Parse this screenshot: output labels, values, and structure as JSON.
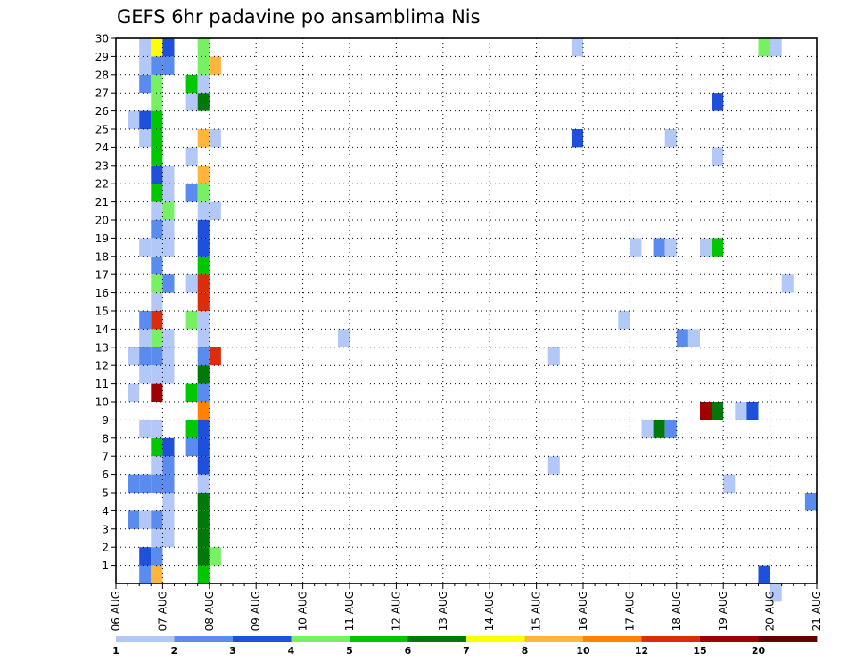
{
  "chart_data": {
    "type": "heatmap",
    "title": "GEFS 6hr padavine po ansamblima Nis",
    "x_range_days": [
      0,
      15
    ],
    "x_tick_labels": [
      "06 AUG",
      "07 AUG",
      "08 AUG",
      "09 AUG",
      "10 AUG",
      "11 AUG",
      "12 AUG",
      "13 AUG",
      "14 AUG",
      "15 AUG",
      "16 AUG",
      "17 AUG",
      "18 AUG",
      "19 AUG",
      "20 AUG",
      "21 AUG"
    ],
    "y_range": [
      0,
      30
    ],
    "y_tick_labels": [
      "1",
      "2",
      "3",
      "4",
      "5",
      "6",
      "7",
      "8",
      "9",
      "10",
      "11",
      "12",
      "13",
      "14",
      "15",
      "16",
      "17",
      "18",
      "19",
      "20",
      "21",
      "22",
      "23",
      "24",
      "25",
      "26",
      "27",
      "28",
      "29",
      "30"
    ],
    "grid": true,
    "step_hours": 6,
    "colorbar": {
      "levels": [
        "1",
        "2",
        "3",
        "4",
        "5",
        "6",
        "7",
        "8",
        "10",
        "12",
        "15",
        "20"
      ],
      "colors": [
        "#b4c8f8",
        "#5a8cf0",
        "#1e50dc",
        "#78f064",
        "#00c800",
        "#00780a",
        "#ffff00",
        "#ffb43c",
        "#ff8200",
        "#dc2d0a",
        "#a00000",
        "#640000"
      ]
    },
    "cells": [
      {
        "day": 0.25,
        "member": 5,
        "class": 2
      },
      {
        "day": 0.25,
        "member": 3,
        "class": 2
      },
      {
        "day": 0.25,
        "member": 10,
        "class": 1
      },
      {
        "day": 0.25,
        "member": 12,
        "class": 1
      },
      {
        "day": 0.25,
        "member": 25,
        "class": 1
      },
      {
        "day": 0.5,
        "member": 0,
        "class": 2
      },
      {
        "day": 0.5,
        "member": 1,
        "class": 3
      },
      {
        "day": 0.5,
        "member": 3,
        "class": 1
      },
      {
        "day": 0.5,
        "member": 5,
        "class": 2
      },
      {
        "day": 0.5,
        "member": 8,
        "class": 1
      },
      {
        "day": 0.5,
        "member": 11,
        "class": 1
      },
      {
        "day": 0.5,
        "member": 12,
        "class": 2
      },
      {
        "day": 0.5,
        "member": 13,
        "class": 1
      },
      {
        "day": 0.5,
        "member": 14,
        "class": 2
      },
      {
        "day": 0.5,
        "member": 18,
        "class": 1
      },
      {
        "day": 0.5,
        "member": 24,
        "class": 1
      },
      {
        "day": 0.5,
        "member": 25,
        "class": 3
      },
      {
        "day": 0.5,
        "member": 27,
        "class": 2
      },
      {
        "day": 0.5,
        "member": 28,
        "class": 1
      },
      {
        "day": 0.5,
        "member": 29,
        "class": 1
      },
      {
        "day": 0.75,
        "member": 0,
        "class": 8
      },
      {
        "day": 0.75,
        "member": 1,
        "class": 2
      },
      {
        "day": 0.75,
        "member": 2,
        "class": 1
      },
      {
        "day": 0.75,
        "member": 3,
        "class": 2
      },
      {
        "day": 0.75,
        "member": 5,
        "class": 2
      },
      {
        "day": 0.75,
        "member": 6,
        "class": 1
      },
      {
        "day": 0.75,
        "member": 7,
        "class": 5
      },
      {
        "day": 0.75,
        "member": 8,
        "class": 1
      },
      {
        "day": 0.75,
        "member": 10,
        "class": 11
      },
      {
        "day": 0.75,
        "member": 11,
        "class": 1
      },
      {
        "day": 0.75,
        "member": 12,
        "class": 2
      },
      {
        "day": 0.75,
        "member": 13,
        "class": 4
      },
      {
        "day": 0.75,
        "member": 14,
        "class": 10
      },
      {
        "day": 0.75,
        "member": 15,
        "class": 1
      },
      {
        "day": 0.75,
        "member": 16,
        "class": 4
      },
      {
        "day": 0.75,
        "member": 17,
        "class": 2
      },
      {
        "day": 0.75,
        "member": 18,
        "class": 1
      },
      {
        "day": 0.75,
        "member": 19,
        "class": 2
      },
      {
        "day": 0.75,
        "member": 20,
        "class": 1
      },
      {
        "day": 0.75,
        "member": 21,
        "class": 5
      },
      {
        "day": 0.75,
        "member": 22,
        "class": 3
      },
      {
        "day": 0.75,
        "member": 23,
        "class": 5
      },
      {
        "day": 0.75,
        "member": 24,
        "class": 5
      },
      {
        "day": 0.75,
        "member": 25,
        "class": 5
      },
      {
        "day": 0.75,
        "member": 26,
        "class": 4
      },
      {
        "day": 0.75,
        "member": 27,
        "class": 4
      },
      {
        "day": 0.75,
        "member": 28,
        "class": 2
      },
      {
        "day": 0.75,
        "member": 29,
        "class": 7
      },
      {
        "day": 1.0,
        "member": 2,
        "class": 1
      },
      {
        "day": 1.0,
        "member": 3,
        "class": 1
      },
      {
        "day": 1.0,
        "member": 4,
        "class": 1
      },
      {
        "day": 1.0,
        "member": 5,
        "class": 2
      },
      {
        "day": 1.0,
        "member": 6,
        "class": 2
      },
      {
        "day": 1.0,
        "member": 7,
        "class": 3
      },
      {
        "day": 1.0,
        "member": 11,
        "class": 1
      },
      {
        "day": 1.0,
        "member": 12,
        "class": 1
      },
      {
        "day": 1.0,
        "member": 13,
        "class": 1
      },
      {
        "day": 1.0,
        "member": 16,
        "class": 2
      },
      {
        "day": 1.0,
        "member": 18,
        "class": 1
      },
      {
        "day": 1.0,
        "member": 19,
        "class": 1
      },
      {
        "day": 1.0,
        "member": 20,
        "class": 4
      },
      {
        "day": 1.0,
        "member": 21,
        "class": 1
      },
      {
        "day": 1.0,
        "member": 22,
        "class": 1
      },
      {
        "day": 1.0,
        "member": 28,
        "class": 2
      },
      {
        "day": 1.0,
        "member": 29,
        "class": 3
      },
      {
        "day": 1.5,
        "member": 7,
        "class": 2
      },
      {
        "day": 1.5,
        "member": 8,
        "class": 5
      },
      {
        "day": 1.5,
        "member": 10,
        "class": 5
      },
      {
        "day": 1.5,
        "member": 14,
        "class": 4
      },
      {
        "day": 1.5,
        "member": 16,
        "class": 1
      },
      {
        "day": 1.5,
        "member": 21,
        "class": 2
      },
      {
        "day": 1.5,
        "member": 23,
        "class": 1
      },
      {
        "day": 1.5,
        "member": 26,
        "class": 1
      },
      {
        "day": 1.5,
        "member": 27,
        "class": 5
      },
      {
        "day": 1.75,
        "member": 0,
        "class": 5
      },
      {
        "day": 1.75,
        "member": 1,
        "class": 6
      },
      {
        "day": 1.75,
        "member": 2,
        "class": 6
      },
      {
        "day": 1.75,
        "member": 3,
        "class": 6
      },
      {
        "day": 1.75,
        "member": 4,
        "class": 6
      },
      {
        "day": 1.75,
        "member": 5,
        "class": 1
      },
      {
        "day": 1.75,
        "member": 6,
        "class": 3
      },
      {
        "day": 1.75,
        "member": 7,
        "class": 3
      },
      {
        "day": 1.75,
        "member": 8,
        "class": 3
      },
      {
        "day": 1.75,
        "member": 9,
        "class": 9
      },
      {
        "day": 1.75,
        "member": 10,
        "class": 2
      },
      {
        "day": 1.75,
        "member": 11,
        "class": 6
      },
      {
        "day": 1.75,
        "member": 12,
        "class": 2
      },
      {
        "day": 1.75,
        "member": 13,
        "class": 1
      },
      {
        "day": 1.75,
        "member": 14,
        "class": 1
      },
      {
        "day": 1.75,
        "member": 15,
        "class": 10
      },
      {
        "day": 1.75,
        "member": 16,
        "class": 10
      },
      {
        "day": 1.75,
        "member": 17,
        "class": 5
      },
      {
        "day": 1.75,
        "member": 18,
        "class": 3
      },
      {
        "day": 1.75,
        "member": 19,
        "class": 3
      },
      {
        "day": 1.75,
        "member": 20,
        "class": 1
      },
      {
        "day": 1.75,
        "member": 21,
        "class": 4
      },
      {
        "day": 1.75,
        "member": 22,
        "class": 8
      },
      {
        "day": 1.75,
        "member": 24,
        "class": 8
      },
      {
        "day": 1.75,
        "member": 26,
        "class": 6
      },
      {
        "day": 1.75,
        "member": 27,
        "class": 1
      },
      {
        "day": 1.75,
        "member": 28,
        "class": 4
      },
      {
        "day": 1.75,
        "member": 29,
        "class": 4
      },
      {
        "day": 2.0,
        "member": 1,
        "class": 4
      },
      {
        "day": 2.0,
        "member": 12,
        "class": 10
      },
      {
        "day": 2.0,
        "member": 20,
        "class": 1
      },
      {
        "day": 2.0,
        "member": 24,
        "class": 1
      },
      {
        "day": 2.0,
        "member": 28,
        "class": 8
      },
      {
        "day": 4.75,
        "member": 13,
        "class": 1
      },
      {
        "day": 9.25,
        "member": 6,
        "class": 1
      },
      {
        "day": 9.25,
        "member": 12,
        "class": 1
      },
      {
        "day": 9.75,
        "member": 24,
        "class": 3
      },
      {
        "day": 9.75,
        "member": 29,
        "class": 1
      },
      {
        "day": 11.0,
        "member": 18,
        "class": 1
      },
      {
        "day": 10.75,
        "member": 14,
        "class": 1
      },
      {
        "day": 11.25,
        "member": 8,
        "class": 1
      },
      {
        "day": 11.5,
        "member": 8,
        "class": 6
      },
      {
        "day": 11.75,
        "member": 8,
        "class": 2
      },
      {
        "day": 11.5,
        "member": 18,
        "class": 2
      },
      {
        "day": 11.75,
        "member": 18,
        "class": 1
      },
      {
        "day": 11.75,
        "member": 24,
        "class": 1
      },
      {
        "day": 12.0,
        "member": 13,
        "class": 2
      },
      {
        "day": 12.25,
        "member": 13,
        "class": 1
      },
      {
        "day": 12.5,
        "member": 18,
        "class": 1
      },
      {
        "day": 12.75,
        "member": 18,
        "class": 5
      },
      {
        "day": 12.5,
        "member": 9,
        "class": 11
      },
      {
        "day": 12.75,
        "member": 9,
        "class": 6
      },
      {
        "day": 12.75,
        "member": 26,
        "class": 3
      },
      {
        "day": 12.75,
        "member": 23,
        "class": 1
      },
      {
        "day": 13.0,
        "member": 5,
        "class": 1
      },
      {
        "day": 13.25,
        "member": 9,
        "class": 1
      },
      {
        "day": 13.5,
        "member": 9,
        "class": 3
      },
      {
        "day": 13.75,
        "member": 0,
        "class": 3
      },
      {
        "day": 13.75,
        "member": 29,
        "class": 4
      },
      {
        "day": 14.0,
        "member": -1,
        "class": 1
      },
      {
        "day": 14.0,
        "member": 29,
        "class": 1
      },
      {
        "day": 14.25,
        "member": 16,
        "class": 1
      },
      {
        "day": 14.75,
        "member": 4,
        "class": 2
      }
    ]
  }
}
